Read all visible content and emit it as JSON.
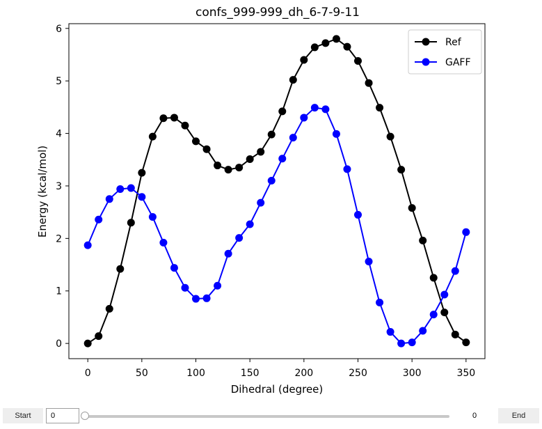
{
  "chart_data": {
    "type": "line",
    "title": "confs_999-999_dh_6-7-9-11",
    "xlabel": "Dihedral (degree)",
    "ylabel": "Energy (kcal/mol)",
    "xlim": [
      -17.5,
      367.5
    ],
    "ylim": [
      -0.29,
      6.09
    ],
    "xticks": [
      0,
      50,
      100,
      150,
      200,
      250,
      300,
      350
    ],
    "yticks": [
      0,
      1,
      2,
      3,
      4,
      5,
      6
    ],
    "x": [
      0,
      10,
      20,
      30,
      40,
      50,
      60,
      70,
      80,
      90,
      100,
      110,
      120,
      130,
      140,
      150,
      160,
      170,
      180,
      190,
      200,
      210,
      220,
      230,
      240,
      250,
      260,
      270,
      280,
      290,
      300,
      310,
      320,
      330,
      340,
      350
    ],
    "series": [
      {
        "name": "Ref",
        "color": "#000000",
        "values": [
          0.0,
          0.14,
          0.66,
          1.42,
          2.3,
          3.25,
          3.94,
          4.29,
          4.3,
          4.15,
          3.85,
          3.7,
          3.39,
          3.31,
          3.35,
          3.51,
          3.65,
          3.98,
          4.42,
          5.02,
          5.4,
          5.64,
          5.72,
          5.8,
          5.65,
          5.38,
          4.96,
          4.49,
          3.94,
          3.31,
          2.58,
          1.96,
          1.25,
          0.59,
          0.17,
          0.02
        ]
      },
      {
        "name": "GAFF",
        "color": "#0000ff",
        "values": [
          1.87,
          2.36,
          2.75,
          2.94,
          2.96,
          2.79,
          2.41,
          1.92,
          1.44,
          1.06,
          0.85,
          0.86,
          1.1,
          1.71,
          2.01,
          2.27,
          2.68,
          3.1,
          3.52,
          3.92,
          4.3,
          4.49,
          4.46,
          3.99,
          3.32,
          2.45,
          1.56,
          0.78,
          0.22,
          0.0,
          0.02,
          0.24,
          0.55,
          0.93,
          1.38,
          2.12
        ]
      }
    ],
    "legend": "top-right",
    "grid": false
  },
  "controls": {
    "start_label": "Start",
    "end_label": "End",
    "frame_value": "0",
    "slider_value": 0,
    "slider_readout": "0"
  }
}
